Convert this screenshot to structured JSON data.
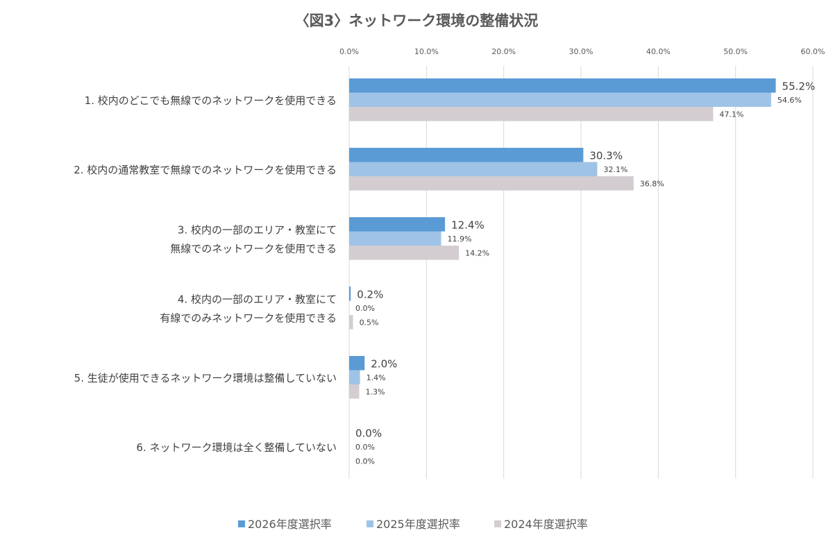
{
  "chart_data": {
    "type": "bar",
    "orientation": "horizontal",
    "title": "〈図3〉ネットワーク環境の整備状況",
    "categories": [
      [
        "1. 校内のどこでも無線でのネットワークを使用できる"
      ],
      [
        "2. 校内の通常教室で無線でのネットワークを使用できる"
      ],
      [
        "3. 校内の一部のエリア・教室にて",
        "無線でのネットワークを使用できる"
      ],
      [
        "4. 校内の一部のエリア・教室にて",
        "有線でのみネットワークを使用できる"
      ],
      [
        "5. 生徒が使用できるネットワーク環境は整備していない"
      ],
      [
        "6. ネットワーク環境は全く整備していない"
      ]
    ],
    "series": [
      {
        "name": "2026年度選択率",
        "color": "#5b9bd5",
        "values": [
          55.2,
          30.3,
          12.4,
          0.2,
          2.0,
          0.0
        ],
        "labels": [
          "55.2%",
          "30.3%",
          "12.4%",
          "0.2%",
          "2.0%",
          "0.0%"
        ]
      },
      {
        "name": "2025年度選択率",
        "color": "#9fc3e7",
        "values": [
          54.6,
          32.1,
          11.9,
          0.0,
          1.4,
          0.0
        ],
        "labels": [
          "54.6%",
          "32.1%",
          "11.9%",
          "0.0%",
          "1.4%",
          "0.0%"
        ]
      },
      {
        "name": "2024年度選択率",
        "color": "#d3cdd1",
        "values": [
          47.1,
          36.8,
          14.2,
          0.5,
          1.3,
          0.0
        ],
        "labels": [
          "47.1%",
          "36.8%",
          "14.2%",
          "0.5%",
          "1.3%",
          "0.0%"
        ]
      }
    ],
    "xlim": [
      0,
      60
    ],
    "xticks": [
      "0.0%",
      "10.0%",
      "20.0%",
      "30.0%",
      "40.0%",
      "50.0%",
      "60.0%"
    ],
    "xaxis_position": "top",
    "grid": true,
    "legend_position": "bottom"
  }
}
